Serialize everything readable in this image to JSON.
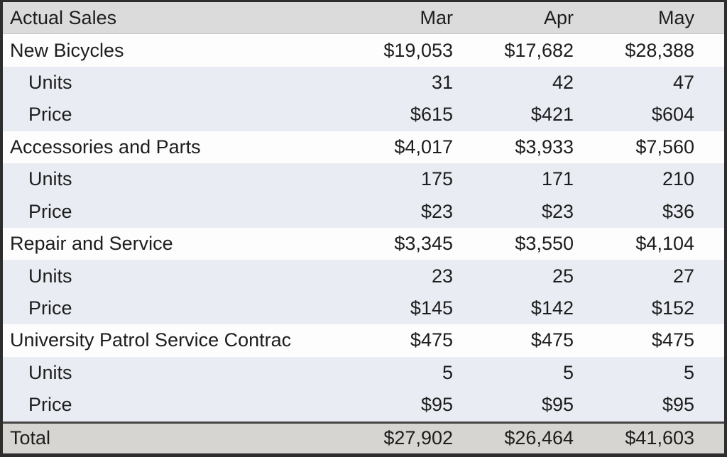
{
  "table": {
    "title": "Actual Sales",
    "columns": [
      "Mar",
      "Apr",
      "May"
    ],
    "rows": [
      {
        "label": "New Bicycles",
        "values": [
          "$19,053",
          "$17,682",
          "$28,388"
        ]
      },
      {
        "label": "Units",
        "values": [
          "31",
          "42",
          "47"
        ]
      },
      {
        "label": "Price",
        "values": [
          "$615",
          "$421",
          "$604"
        ]
      },
      {
        "label": "Accessories and Parts",
        "values": [
          "$4,017",
          "$3,933",
          "$7,560"
        ]
      },
      {
        "label": "Units",
        "values": [
          "175",
          "171",
          "210"
        ]
      },
      {
        "label": "Price",
        "values": [
          "$23",
          "$23",
          "$36"
        ]
      },
      {
        "label": "Repair and Service",
        "values": [
          "$3,345",
          "$3,550",
          "$4,104"
        ]
      },
      {
        "label": "Units",
        "values": [
          "23",
          "25",
          "27"
        ]
      },
      {
        "label": "Price",
        "values": [
          "$145",
          "$142",
          "$152"
        ]
      },
      {
        "label": "University Patrol Service Contrac",
        "values": [
          "$475",
          "$475",
          "$475"
        ]
      },
      {
        "label": "Units",
        "values": [
          "5",
          "5",
          "5"
        ]
      },
      {
        "label": "Price",
        "values": [
          "$95",
          "$95",
          "$95"
        ]
      }
    ],
    "total": {
      "label": "Total",
      "values": [
        "$27,902",
        "$26,464",
        "$41,603"
      ]
    }
  },
  "chart_data": {
    "type": "table",
    "title": "Actual Sales",
    "columns": [
      "Mar",
      "Apr",
      "May"
    ],
    "rows": [
      {
        "label": "New Bicycles",
        "group": "category",
        "values": [
          19053,
          17682,
          28388
        ],
        "unit": "USD"
      },
      {
        "label": "Units",
        "group": "New Bicycles",
        "values": [
          31,
          42,
          47
        ]
      },
      {
        "label": "Price",
        "group": "New Bicycles",
        "values": [
          615,
          421,
          604
        ],
        "unit": "USD"
      },
      {
        "label": "Accessories and Parts",
        "group": "category",
        "values": [
          4017,
          3933,
          7560
        ],
        "unit": "USD"
      },
      {
        "label": "Units",
        "group": "Accessories and Parts",
        "values": [
          175,
          171,
          210
        ]
      },
      {
        "label": "Price",
        "group": "Accessories and Parts",
        "values": [
          23,
          23,
          36
        ],
        "unit": "USD"
      },
      {
        "label": "Repair and Service",
        "group": "category",
        "values": [
          3345,
          3550,
          4104
        ],
        "unit": "USD"
      },
      {
        "label": "Units",
        "group": "Repair and Service",
        "values": [
          23,
          25,
          27
        ]
      },
      {
        "label": "Price",
        "group": "Repair and Service",
        "values": [
          145,
          142,
          152
        ],
        "unit": "USD"
      },
      {
        "label": "University Patrol Service Contrac",
        "group": "category",
        "values": [
          475,
          475,
          475
        ],
        "unit": "USD"
      },
      {
        "label": "Units",
        "group": "University Patrol Service Contrac",
        "values": [
          5,
          5,
          5
        ]
      },
      {
        "label": "Price",
        "group": "University Patrol Service Contrac",
        "values": [
          95,
          95,
          95
        ],
        "unit": "USD"
      },
      {
        "label": "Total",
        "group": "total",
        "values": [
          27902,
          26464,
          41603
        ],
        "unit": "USD"
      }
    ]
  },
  "colors": {
    "header_bg": "#dbdbdb",
    "category_row_bg": "#fdfdfd",
    "detail_row_bg": "#e9edf3",
    "total_row_bg": "#d7d5d1",
    "border": "#2d2d2d",
    "text": "#1d1d1d"
  }
}
